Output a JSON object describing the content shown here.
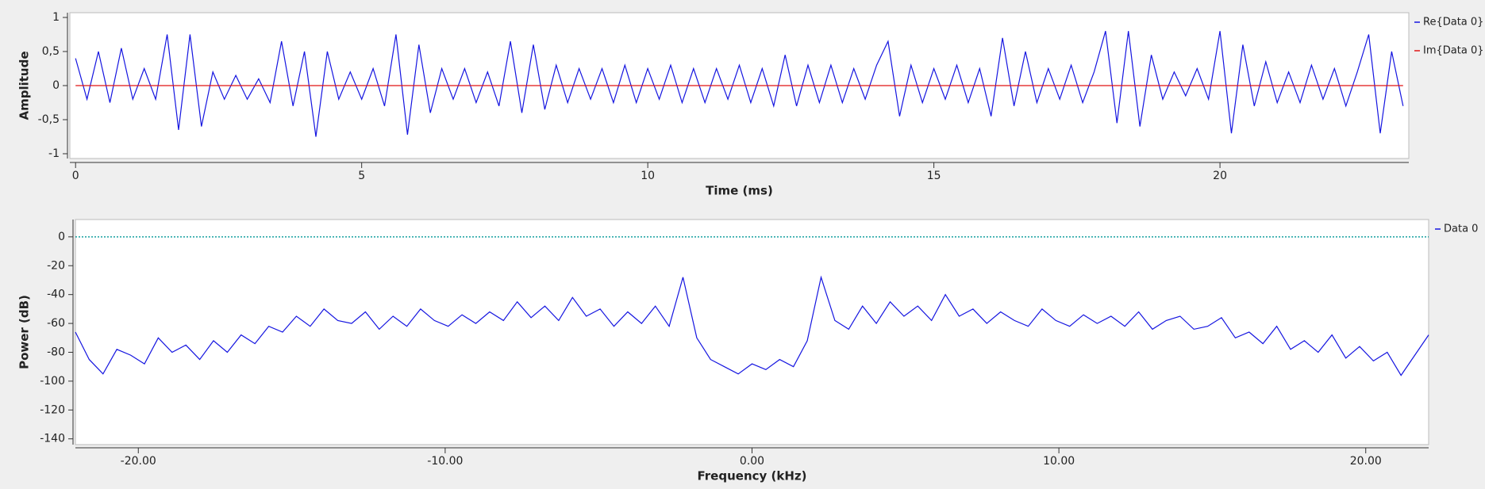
{
  "chart_data": [
    {
      "type": "line",
      "xlabel": "Time (ms)",
      "ylabel": "Amplitude",
      "xlim": [
        -0.1,
        23.3
      ],
      "ylim": [
        -1.07,
        1.07
      ],
      "xticks": [
        0,
        5,
        10,
        15,
        20
      ],
      "yticks": [
        1,
        {
          "value": 0.5,
          "label": "0,5"
        },
        0,
        {
          "value": -0.5,
          "label": "-0,5"
        },
        -1
      ],
      "legend": "right",
      "x": [
        0,
        0.2,
        0.4,
        0.6,
        0.8,
        1,
        1.2,
        1.4,
        1.6,
        1.8,
        2,
        2.2,
        2.4,
        2.6,
        2.8,
        3,
        3.2,
        3.4,
        3.6,
        3.8,
        4,
        4.2,
        4.4,
        4.6,
        4.8,
        5,
        5.2,
        5.4,
        5.6,
        5.8,
        6,
        6.2,
        6.4,
        6.6,
        6.8,
        7,
        7.2,
        7.4,
        7.6,
        7.8,
        8,
        8.2,
        8.4,
        8.6,
        8.8,
        9,
        9.2,
        9.4,
        9.6,
        9.8,
        10,
        10.2,
        10.4,
        10.6,
        10.8,
        11,
        11.2,
        11.4,
        11.6,
        11.8,
        12,
        12.2,
        12.4,
        12.6,
        12.8,
        13,
        13.2,
        13.4,
        13.6,
        13.8,
        14,
        14.2,
        14.4,
        14.6,
        14.8,
        15,
        15.2,
        15.4,
        15.6,
        15.8,
        16,
        16.2,
        16.4,
        16.6,
        16.8,
        17,
        17.2,
        17.4,
        17.6,
        17.8,
        18,
        18.2,
        18.4,
        18.6,
        18.8,
        19,
        19.2,
        19.4,
        19.6,
        19.8,
        20,
        20.2,
        20.4,
        20.6,
        20.8,
        21,
        21.2,
        21.4,
        21.6,
        21.8,
        22,
        22.2,
        22.4,
        22.6,
        22.8,
        23,
        23.2
      ],
      "series": [
        {
          "name": "Re{Data 0}",
          "color": "#1515e0",
          "values": [
            0.4,
            -0.2,
            0.5,
            -0.25,
            0.55,
            -0.2,
            0.25,
            -0.2,
            0.75,
            -0.65,
            0.75,
            -0.6,
            0.2,
            -0.2,
            0.15,
            -0.2,
            0.1,
            -0.25,
            0.65,
            -0.3,
            0.5,
            -0.75,
            0.5,
            -0.2,
            0.2,
            -0.2,
            0.25,
            -0.3,
            0.75,
            -0.72,
            0.6,
            -0.4,
            0.25,
            -0.2,
            0.25,
            -0.25,
            0.2,
            -0.3,
            0.65,
            -0.4,
            0.6,
            -0.35,
            0.3,
            -0.25,
            0.25,
            -0.2,
            0.25,
            -0.25,
            0.3,
            -0.25,
            0.25,
            -0.2,
            0.3,
            -0.25,
            0.25,
            -0.25,
            0.25,
            -0.2,
            0.3,
            -0.25,
            0.25,
            -0.3,
            0.45,
            -0.3,
            0.3,
            -0.25,
            0.3,
            -0.25,
            0.25,
            -0.2,
            0.3,
            0.65,
            -0.45,
            0.3,
            -0.25,
            0.25,
            -0.2,
            0.3,
            -0.25,
            0.25,
            -0.45,
            0.7,
            -0.3,
            0.5,
            -0.25,
            0.25,
            -0.2,
            0.3,
            -0.25,
            0.2,
            0.8,
            -0.55,
            0.8,
            -0.6,
            0.45,
            -0.2,
            0.2,
            -0.15,
            0.25,
            -0.2,
            0.8,
            -0.7,
            0.6,
            -0.3,
            0.35,
            -0.25,
            0.2,
            -0.25,
            0.3,
            -0.2,
            0.25,
            -0.3,
            0.2,
            0.75,
            -0.7,
            0.5,
            -0.3
          ]
        },
        {
          "name": "Im{Data 0}",
          "color": "#e01515",
          "values": [
            0,
            0,
            0,
            0,
            0,
            0,
            0,
            0,
            0,
            0,
            0,
            0,
            0,
            0,
            0,
            0,
            0,
            0,
            0,
            0,
            0,
            0,
            0,
            0,
            0,
            0,
            0,
            0,
            0,
            0,
            0,
            0,
            0,
            0,
            0,
            0,
            0,
            0,
            0,
            0,
            0,
            0,
            0,
            0,
            0,
            0,
            0,
            0,
            0,
            0,
            0,
            0,
            0,
            0,
            0,
            0,
            0,
            0,
            0,
            0,
            0,
            0,
            0,
            0,
            0,
            0,
            0,
            0,
            0,
            0,
            0,
            0,
            0,
            0,
            0,
            0,
            0,
            0,
            0,
            0,
            0,
            0,
            0,
            0,
            0,
            0,
            0,
            0,
            0,
            0,
            0,
            0,
            0,
            0,
            0,
            0,
            0,
            0,
            0,
            0,
            0,
            0,
            0,
            0,
            0,
            0,
            0,
            0,
            0,
            0,
            0,
            0,
            0,
            0,
            0,
            0,
            0
          ]
        }
      ]
    },
    {
      "type": "line",
      "xlabel": "Frequency (kHz)",
      "ylabel": "Power (dB)",
      "xlim": [
        -22.05,
        22.05
      ],
      "ylim": [
        -144,
        12
      ],
      "xticks": [
        {
          "value": -20,
          "label": "-20.00"
        },
        {
          "value": -10,
          "label": "-10.00"
        },
        {
          "value": 0,
          "label": "0.00"
        },
        {
          "value": 10,
          "label": "10.00"
        },
        {
          "value": 20,
          "label": "20.00"
        }
      ],
      "yticks": [
        0,
        -20,
        -40,
        -60,
        -80,
        -100,
        -120,
        -140
      ],
      "legend": "right",
      "hline": {
        "value": 0,
        "color": "#17a0a0"
      },
      "x": [
        -22.05,
        -21.6,
        -21.15,
        -20.7,
        -20.25,
        -19.8,
        -19.35,
        -18.9,
        -18.45,
        -18,
        -17.55,
        -17.1,
        -16.65,
        -16.2,
        -15.75,
        -15.3,
        -14.85,
        -14.4,
        -13.95,
        -13.5,
        -13.05,
        -12.6,
        -12.15,
        -11.7,
        -11.25,
        -10.8,
        -10.35,
        -9.9,
        -9.45,
        -9,
        -8.55,
        -8.1,
        -7.65,
        -7.2,
        -6.75,
        -6.3,
        -5.85,
        -5.4,
        -4.95,
        -4.5,
        -4.05,
        -3.6,
        -3.15,
        -2.7,
        -2.25,
        -1.8,
        -1.35,
        -0.9,
        -0.45,
        0,
        0.45,
        0.9,
        1.35,
        1.8,
        2.25,
        2.7,
        3.15,
        3.6,
        4.05,
        4.5,
        4.95,
        5.4,
        5.85,
        6.3,
        6.75,
        7.2,
        7.65,
        8.1,
        8.55,
        9,
        9.45,
        9.9,
        10.35,
        10.8,
        11.25,
        11.7,
        12.15,
        12.6,
        13.05,
        13.5,
        13.95,
        14.4,
        14.85,
        15.3,
        15.75,
        16.2,
        16.65,
        17.1,
        17.55,
        18,
        18.45,
        18.9,
        19.35,
        19.8,
        20.25,
        20.7,
        21.15,
        21.6,
        22.05
      ],
      "series": [
        {
          "name": "Data 0",
          "color": "#1515e0",
          "values": [
            -66,
            -85,
            -95,
            -78,
            -82,
            -88,
            -70,
            -80,
            -75,
            -85,
            -72,
            -80,
            -68,
            -74,
            -62,
            -66,
            -55,
            -62,
            -50,
            -58,
            -60,
            -52,
            -64,
            -55,
            -62,
            -50,
            -58,
            -62,
            -54,
            -60,
            -52,
            -58,
            -45,
            -56,
            -48,
            -58,
            -42,
            -55,
            -50,
            -62,
            -52,
            -60,
            -48,
            -62,
            -28,
            -70,
            -85,
            -90,
            -95,
            -88,
            -92,
            -85,
            -90,
            -72,
            -28,
            -58,
            -64,
            -48,
            -60,
            -45,
            -55,
            -48,
            -58,
            -40,
            -55,
            -50,
            -60,
            -52,
            -58,
            -62,
            -50,
            -58,
            -62,
            -54,
            -60,
            -55,
            -62,
            -52,
            -64,
            -58,
            -55,
            -64,
            -62,
            -56,
            -70,
            -66,
            -74,
            -62,
            -78,
            -72,
            -80,
            -68,
            -84,
            -76,
            -86,
            -80,
            -96,
            -82,
            -68
          ]
        }
      ]
    }
  ]
}
